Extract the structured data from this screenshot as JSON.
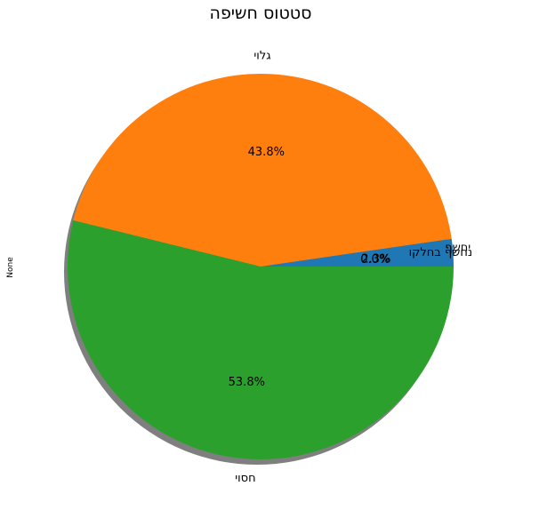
{
  "chart_data": {
    "type": "pie",
    "title": "סטטוס חשיפה",
    "ylabel": "None",
    "categories": [
      "נחשף בחלקו",
      "יחשף",
      "גלוי",
      "חסוי"
    ],
    "values": [
      2.3,
      0.0,
      43.8,
      53.8
    ],
    "percent_labels": [
      "2.3%",
      "0.0%",
      "43.8%",
      "53.8%"
    ],
    "colors": [
      "#1f77b4",
      "#ff7f0e",
      "#ff7f0e",
      "#2ca02c"
    ],
    "slice_colors": {
      "נחשף בחלקו": "#1f77b4",
      "יחשף": "#ff7f0e",
      "גלוי": "#ff7f0e",
      "חסוי": "#2ca02c"
    },
    "shadow": true,
    "legend": "none"
  }
}
